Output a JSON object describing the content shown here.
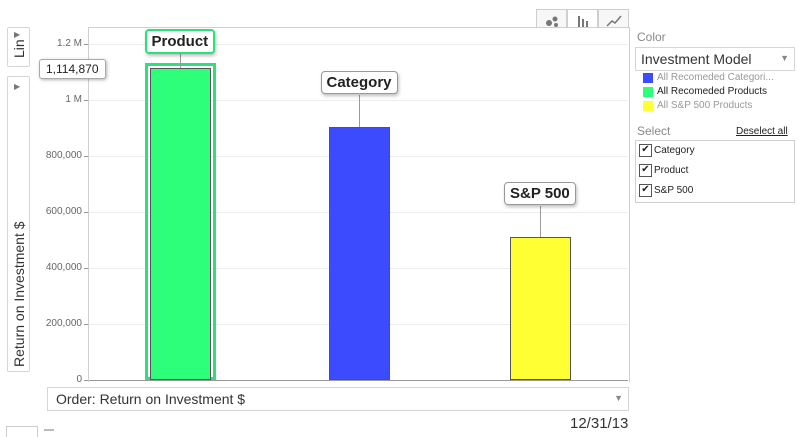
{
  "side_tabs": {
    "scale_label": "Lin",
    "y_axis_label": "Return on Investment $"
  },
  "toolbar": {
    "buttons": [
      {
        "name": "bubble-chart-icon",
        "glyph": "●"
      },
      {
        "name": "bar-chart-icon",
        "glyph": "‖"
      },
      {
        "name": "line-chart-icon",
        "glyph": "∕"
      }
    ]
  },
  "chart_data": {
    "type": "bar",
    "categories": [
      "Product",
      "Category",
      "S&P 500"
    ],
    "values": [
      1114870,
      905000,
      512000
    ],
    "colors": [
      "#2EFF7A",
      "#3D4BFF",
      "#FFFF33"
    ],
    "ylabel": "Return on Investment $",
    "ylim": [
      0,
      1200000
    ],
    "yticks": [
      {
        "value": 0,
        "label": "0"
      },
      {
        "value": 200000,
        "label": "200,000"
      },
      {
        "value": 400000,
        "label": "400,000"
      },
      {
        "value": 600000,
        "label": "600,000"
      },
      {
        "value": 800000,
        "label": "800,000"
      },
      {
        "value": 1000000,
        "label": "1 M"
      },
      {
        "value": 1200000,
        "label": "1.2 M"
      }
    ],
    "selected_index": 0,
    "tooltip": "1,114,870",
    "grid": true
  },
  "order_dropdown": {
    "label": "Order: Return on Investment $"
  },
  "date_label": "12/31/13",
  "color_panel": {
    "title": "Color",
    "selected": "Investment Model",
    "legend": [
      {
        "label": "All Recomeded Categori...",
        "color": "#3D4BFF",
        "dim": true
      },
      {
        "label": "All Recomeded Products",
        "color": "#2EFF7A",
        "dim": false
      },
      {
        "label": "All S&P 500 Products",
        "color": "#FFFF33",
        "dim": true
      }
    ]
  },
  "select_panel": {
    "title": "Select",
    "deselect_label": "Deselect all",
    "items": [
      {
        "label": "Category",
        "checked": true
      },
      {
        "label": "Product",
        "checked": true
      },
      {
        "label": "S&P 500",
        "checked": true
      }
    ]
  }
}
